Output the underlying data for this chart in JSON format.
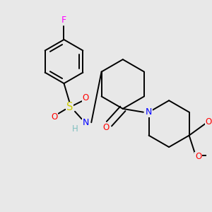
{
  "background_color": "#e8e8e8",
  "bond_color": "#000000",
  "atom_colors": {
    "F": "#ff00ff",
    "S": "#cccc00",
    "O": "#ff0000",
    "N": "#0000ff",
    "H": "#7fbfbf",
    "C": "#000000"
  },
  "font_size_atoms": 8.5,
  "line_width": 1.4
}
